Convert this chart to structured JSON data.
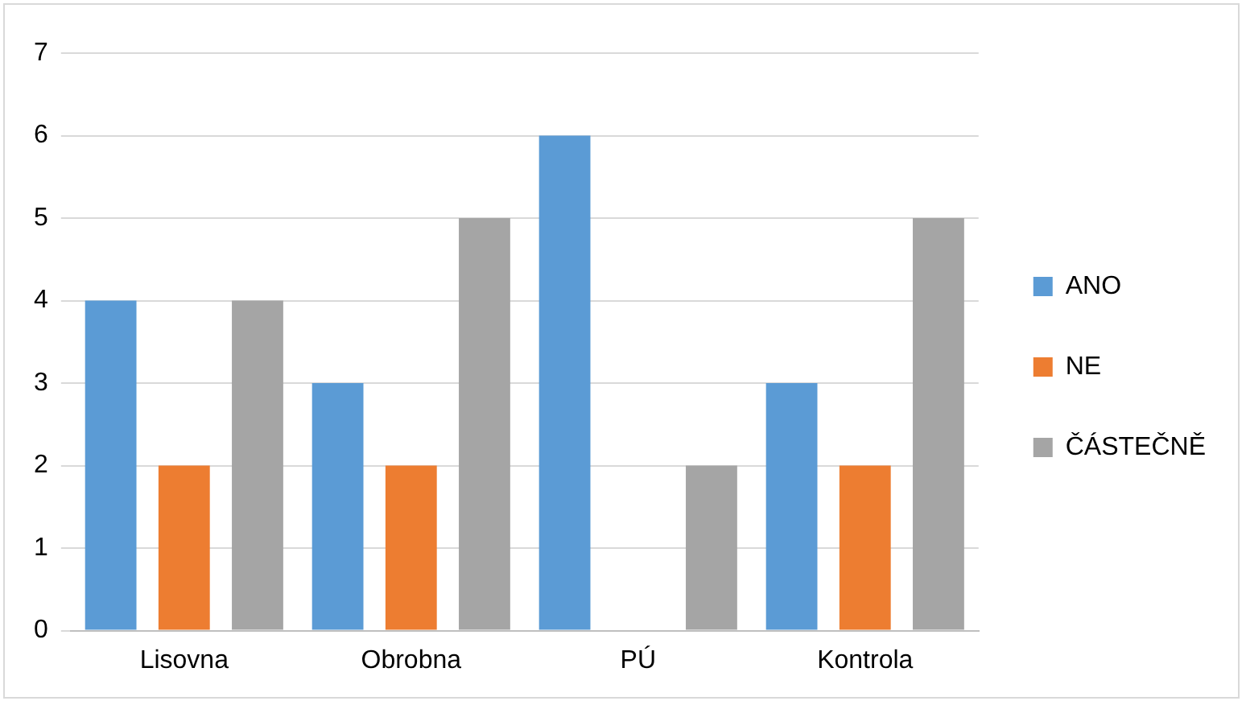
{
  "chart_data": {
    "type": "bar",
    "categories": [
      "Lisovna",
      "Obrobna",
      "PÚ",
      "Kontrola"
    ],
    "series": [
      {
        "name": "ANO",
        "color": "#5b9bd5",
        "values": [
          4,
          3,
          6,
          3
        ]
      },
      {
        "name": "NE",
        "color": "#ed7d31",
        "values": [
          2,
          2,
          0,
          2
        ]
      },
      {
        "name": "ČÁSTEČNĚ",
        "color": "#a5a5a5",
        "values": [
          4,
          5,
          2,
          5
        ]
      }
    ],
    "ylim": [
      0,
      7
    ],
    "yticks": [
      0,
      1,
      2,
      3,
      4,
      5,
      6,
      7
    ],
    "grid": "y",
    "legend": "right"
  }
}
